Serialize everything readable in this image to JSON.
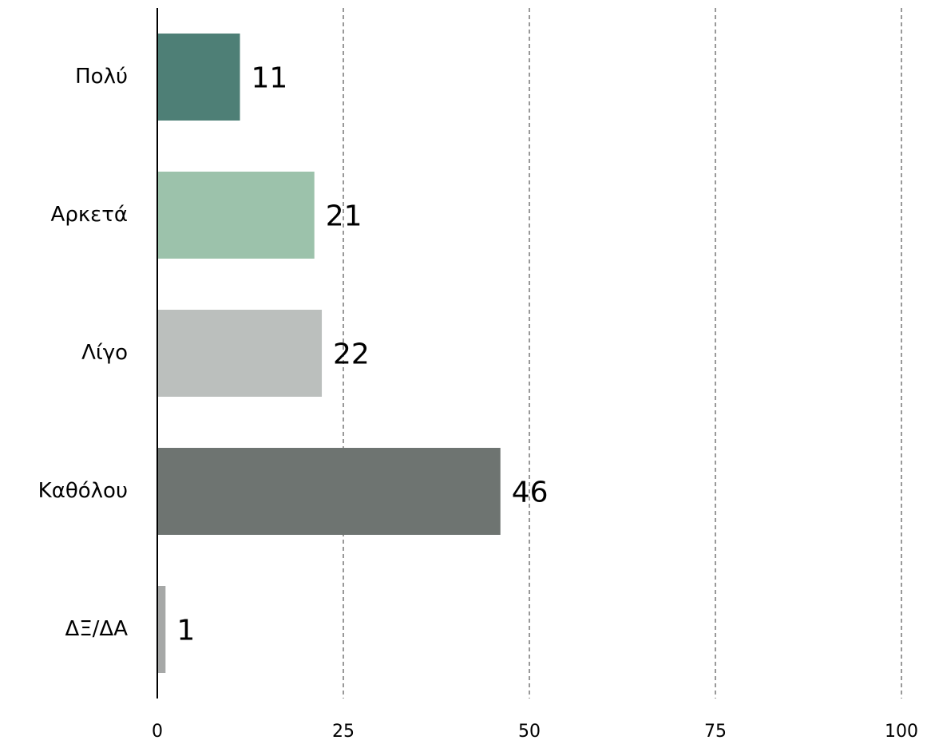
{
  "chart_data": {
    "type": "hbar",
    "categories": [
      "Πολύ",
      "Αρκετά",
      "Λίγο",
      "Καθόλου",
      "ΔΞ/ΔΑ"
    ],
    "values": [
      11,
      21,
      22,
      46,
      1
    ],
    "colors": [
      "#4e7f76",
      "#9cc2ab",
      "#bbbfbd",
      "#6e7471",
      "#a6a8a7"
    ],
    "xlim": [
      0,
      100
    ],
    "xticks": [
      0,
      25,
      50,
      75,
      100
    ],
    "grid": true
  }
}
